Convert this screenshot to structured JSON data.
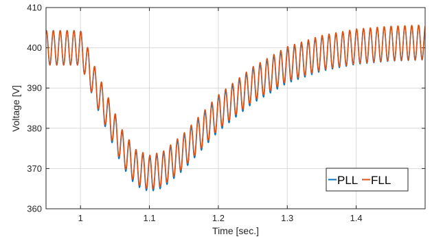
{
  "chart_data": {
    "type": "line",
    "title": "",
    "xlabel": "Time [sec.]",
    "ylabel": "Voltage [V]",
    "xlim": [
      0.95,
      1.5
    ],
    "ylim": [
      360,
      410
    ],
    "xticks": [
      1,
      1.1,
      1.2,
      1.3,
      1.4
    ],
    "xtick_labels": [
      "1",
      "1.1",
      "1.2",
      "1.3",
      "1.4"
    ],
    "yticks": [
      360,
      370,
      380,
      390,
      400,
      410
    ],
    "ytick_labels": [
      "360",
      "370",
      "380",
      "390",
      "400",
      "410"
    ],
    "grid": true,
    "legend": {
      "position": "bottom-right",
      "orientation": "horizontal"
    },
    "oscillation": {
      "frequency_hz": 100,
      "amplitude_v": 4.3
    },
    "series": [
      {
        "name": "PLL",
        "color": "#0072BD",
        "description": "oscillating voltage, envelope center values listed",
        "x": [
          0.95,
          1.0,
          1.01,
          1.02,
          1.04,
          1.06,
          1.08,
          1.1,
          1.12,
          1.15,
          1.2,
          1.25,
          1.3,
          1.35,
          1.4,
          1.45,
          1.5
        ],
        "values": [
          400,
          400,
          396,
          391,
          383,
          375,
          370,
          368.5,
          369.5,
          374,
          383.5,
          390.5,
          395.5,
          398.5,
          400.2,
          401,
          401.3
        ]
      },
      {
        "name": "FLL",
        "color": "#D95319",
        "description": "oscillating voltage, envelope center values listed",
        "x": [
          0.95,
          1.0,
          1.01,
          1.02,
          1.04,
          1.06,
          1.08,
          1.1,
          1.12,
          1.15,
          1.2,
          1.25,
          1.3,
          1.35,
          1.4,
          1.45,
          1.5
        ],
        "values": [
          400,
          400,
          396,
          391.3,
          383.5,
          375.5,
          370.5,
          369,
          370,
          374.5,
          384,
          391,
          396,
          398.8,
          400.4,
          401.1,
          401.4
        ]
      }
    ]
  }
}
